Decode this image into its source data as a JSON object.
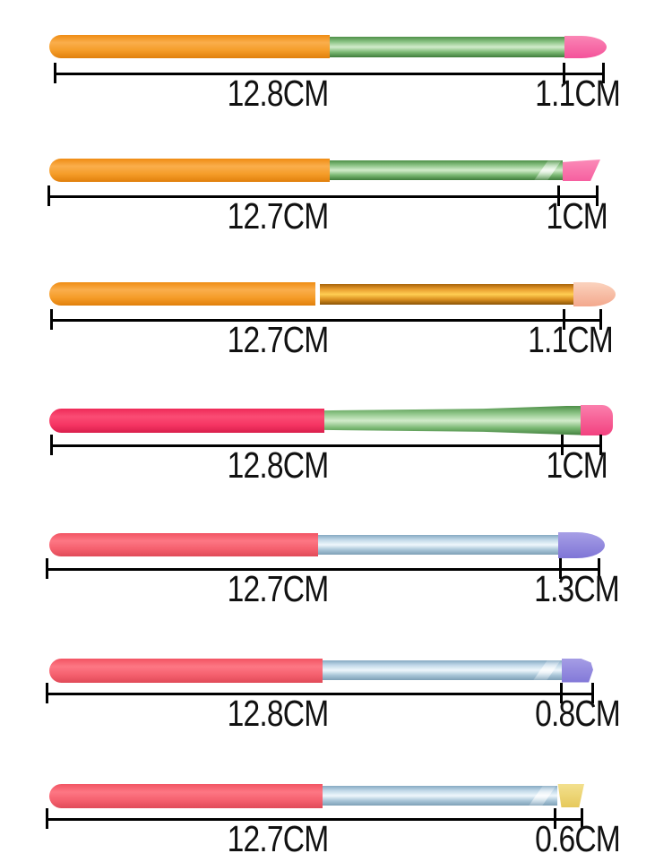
{
  "page": {
    "background": "#ffffff",
    "description": "seven-makeup-brushes-dimension-diagram",
    "line_color": "#000000",
    "label_color": "#111111",
    "unit": "CM"
  },
  "brushes": [
    {
      "name": "orange-handle-green-ferrule-pink-round-tip",
      "handle_colors": [
        "#EF8C13",
        "#FAAE4C",
        "#F59C28",
        "#E07F0B"
      ],
      "ferrule_colors": [
        "#4E8F48",
        "#8CC486",
        "#D2ECCB",
        "#7AB873",
        "#3F7C3B"
      ],
      "tip_colors": [
        "#FA86B5",
        "#F4529A"
      ],
      "tip_shape": "round",
      "total_cm": 12.8,
      "tip_cm": 1.1,
      "total_label": "12.8CM",
      "tip_label": "1.1CM"
    },
    {
      "name": "orange-handle-green-ferrule-pink-angled-tip",
      "handle_colors": [
        "#EF8C13",
        "#FAAE4C",
        "#F59C28",
        "#E07F0B"
      ],
      "ferrule_colors": [
        "#4E8F48",
        "#8CC486",
        "#D2ECCB",
        "#7AB873",
        "#3F7C3B"
      ],
      "tip_colors": [
        "#FB8BB8",
        "#F65FA0"
      ],
      "tip_shape": "angled",
      "twist": true,
      "total_cm": 12.7,
      "tip_cm": 1,
      "total_label": "12.7CM",
      "tip_label": "1CM"
    },
    {
      "name": "orange-handle-gold-ferrule-peach-round-tip",
      "handle_colors": [
        "#EF8C13",
        "#FAAE4C",
        "#F59C28",
        "#E07F0B"
      ],
      "ferrule_colors": [
        "#A96409",
        "#E89C2E",
        "#FFCE53",
        "#D98F1F",
        "#8A5305"
      ],
      "tip_colors": [
        "#FBD3BE",
        "#F3A88D"
      ],
      "tip_shape": "round",
      "total_cm": 12.7,
      "tip_cm": 1.1,
      "total_label": "12.7CM",
      "tip_label": "1.1CM"
    },
    {
      "name": "crimson-handle-green-flared-ferrule-pink-flat-tip",
      "handle_colors": [
        "#EE2A58",
        "#FA4C74",
        "#F63563",
        "#D91F4C"
      ],
      "ferrule_colors": [
        "#4E8F48",
        "#8CC486",
        "#D2ECCB",
        "#7AB873",
        "#3F7C3B"
      ],
      "tip_colors": [
        "#FB7FAD",
        "#F2417F"
      ],
      "tip_shape": "flat",
      "flared": true,
      "total_cm": 12.8,
      "tip_cm": 1,
      "total_label": "12.8CM",
      "tip_label": "1CM"
    },
    {
      "name": "coral-handle-blue-ferrule-purple-round-tip",
      "handle_colors": [
        "#F25463",
        "#FD7784",
        "#F5606E",
        "#E04A58"
      ],
      "ferrule_colors": [
        "#86A9C2",
        "#C2D9E9",
        "#EFF7FC",
        "#A9C6D8",
        "#7E9FB6"
      ],
      "tip_colors": [
        "#A79FE6",
        "#7F75D6"
      ],
      "tip_shape": "round",
      "total_cm": 12.7,
      "tip_cm": 1.3,
      "total_label": "12.7CM",
      "tip_label": "1.3CM"
    },
    {
      "name": "coral-handle-blue-ferrule-purple-small-angled-tip",
      "handle_colors": [
        "#F25463",
        "#FD7784",
        "#F5606E",
        "#E04A58"
      ],
      "ferrule_colors": [
        "#86A9C2",
        "#C2D9E9",
        "#EFF7FC",
        "#A9C6D8",
        "#7E9FB6"
      ],
      "tip_colors": [
        "#A59DE5",
        "#8278D8"
      ],
      "tip_shape": "smallangle",
      "twist": true,
      "total_cm": 12.8,
      "tip_cm": 0.8,
      "total_label": "12.8CM",
      "tip_label": "0.8CM"
    },
    {
      "name": "coral-handle-blue-ferrule-yellow-slanted-tip",
      "handle_colors": [
        "#F25463",
        "#FD7784",
        "#F5606E",
        "#E04A58"
      ],
      "ferrule_colors": [
        "#86A9C2",
        "#C2D9E9",
        "#EFF7FC",
        "#A9C6D8",
        "#7E9FB6"
      ],
      "tip_colors": [
        "#F3E08E",
        "#E6C95B"
      ],
      "tip_shape": "para",
      "twist": true,
      "total_cm": 12.7,
      "tip_cm": 0.6,
      "total_label": "12.7CM",
      "tip_label": "0.6CM"
    }
  ]
}
